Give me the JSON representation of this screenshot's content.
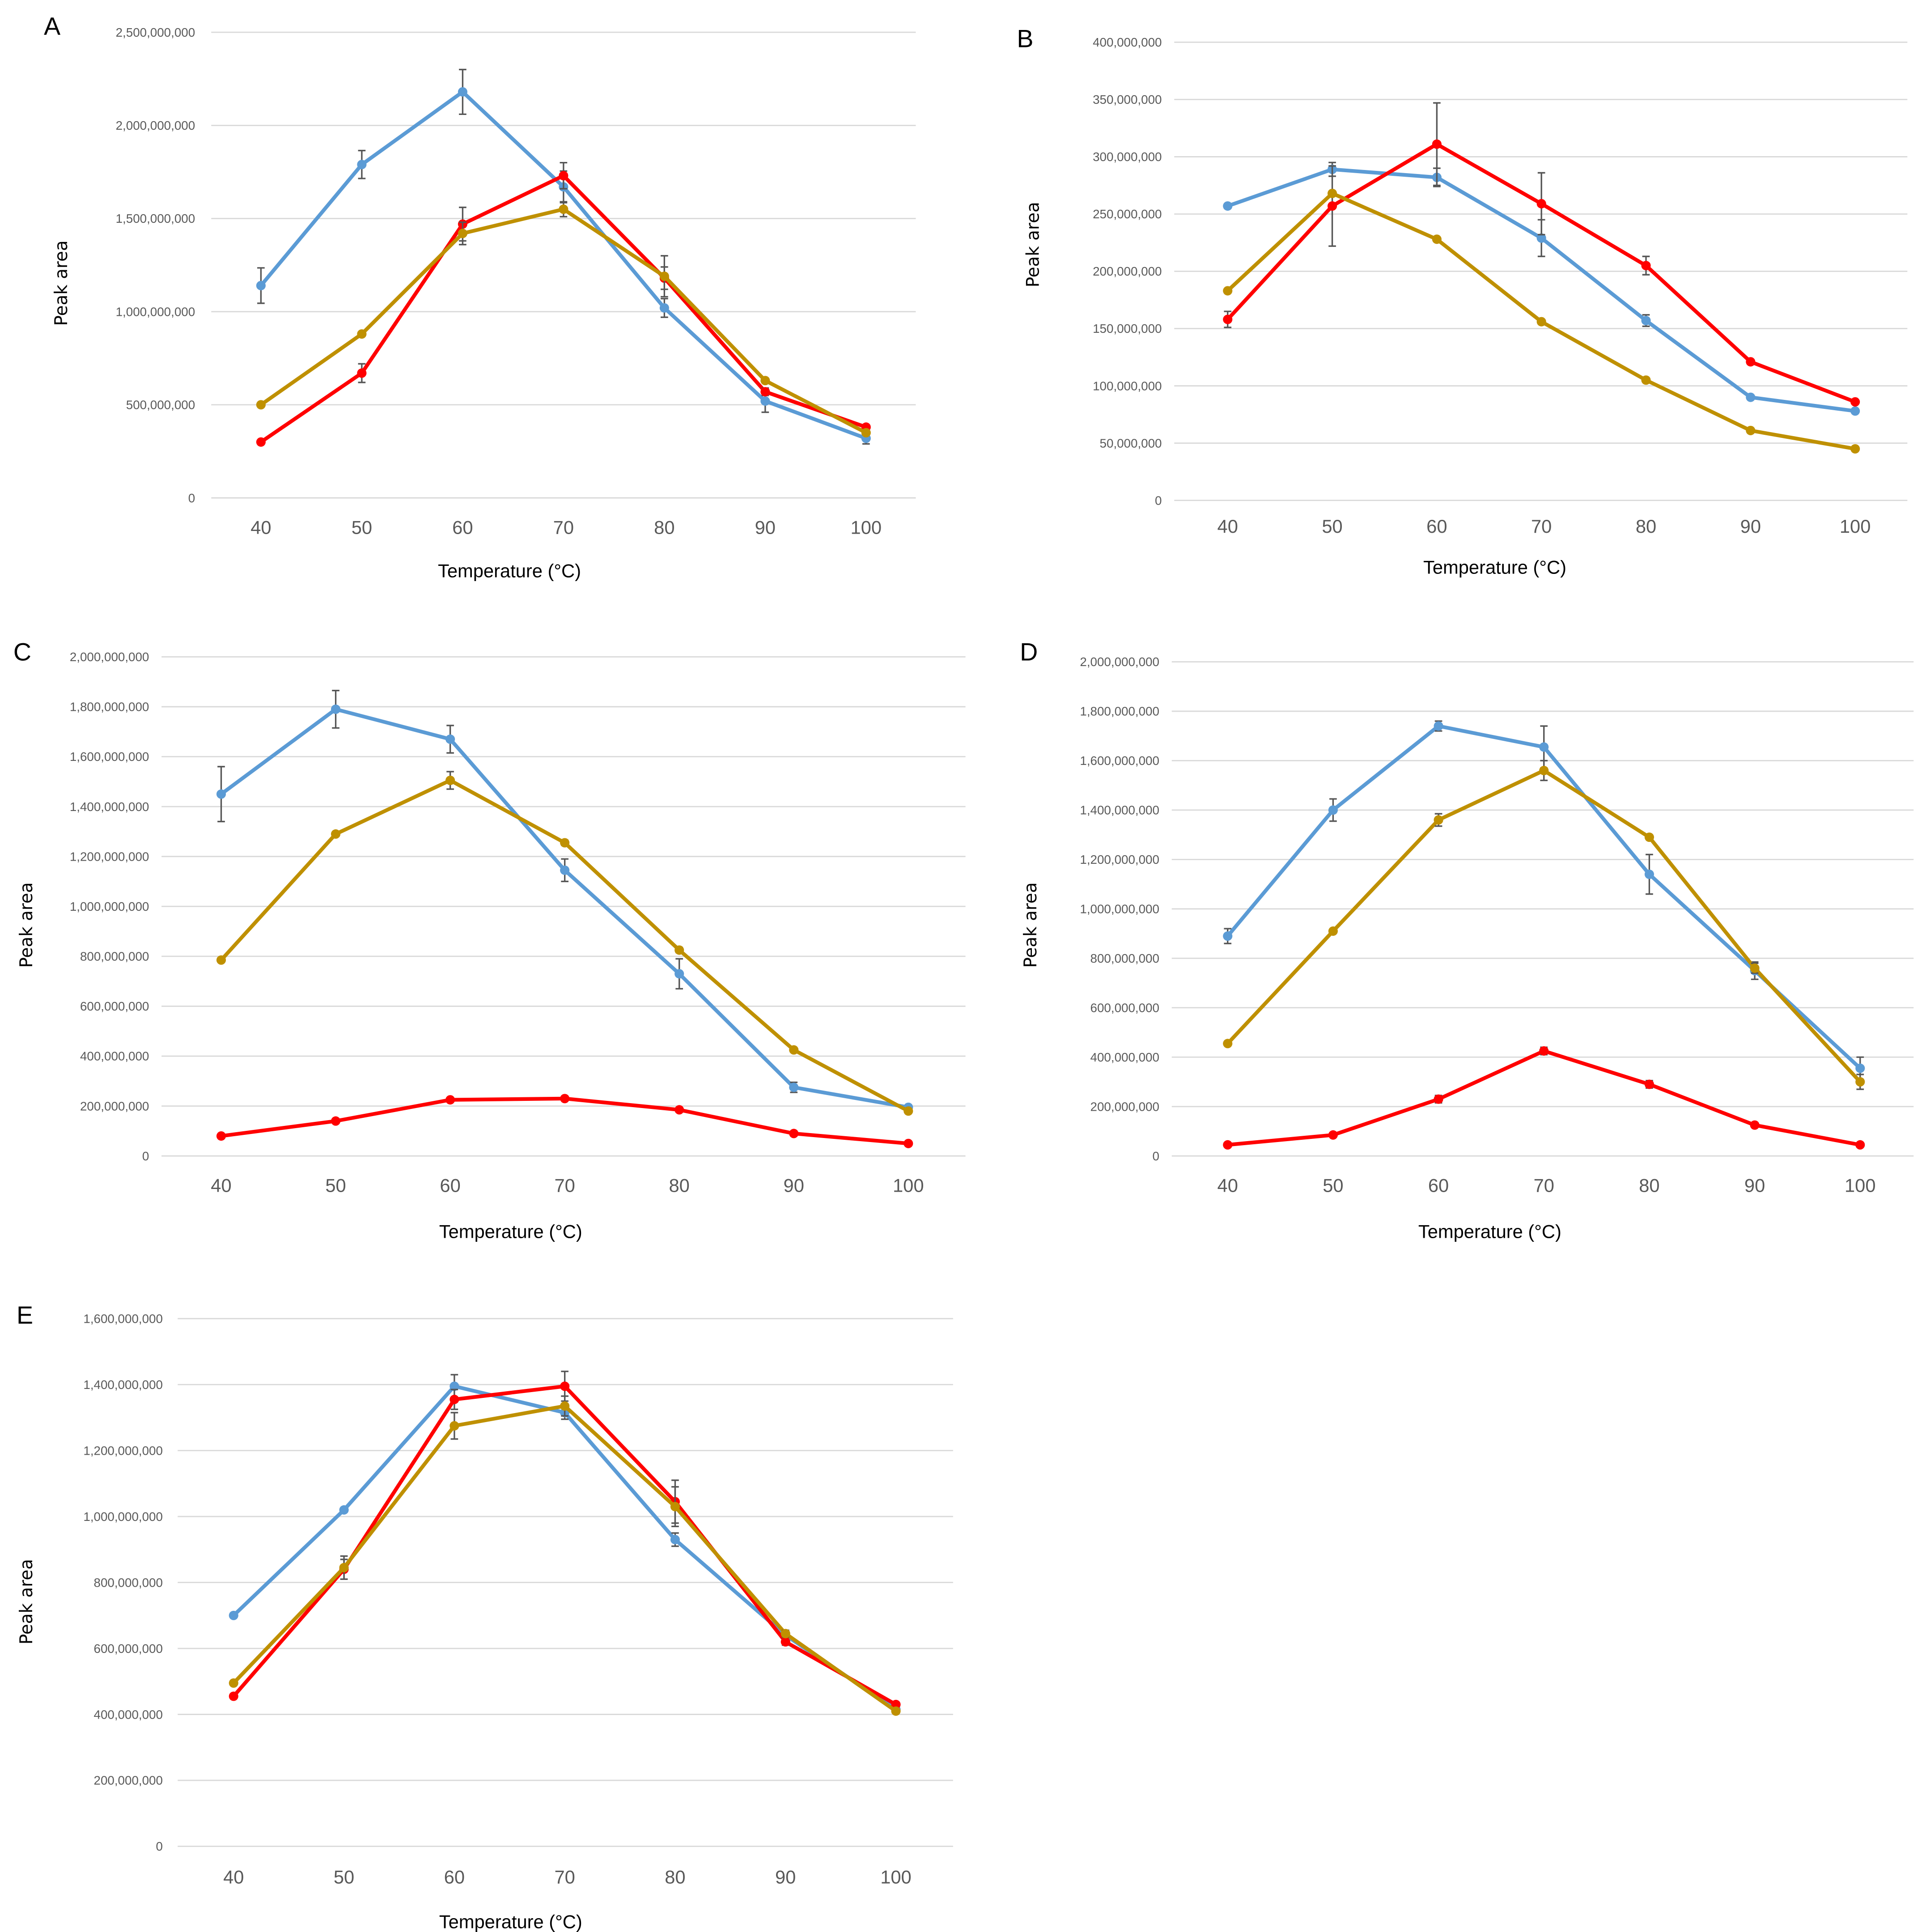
{
  "series_colors": {
    "blue": "#5b9bd5",
    "red": "#ff0000",
    "gold": "#bf9000"
  },
  "chart_data": [
    {
      "type": "line",
      "panel": "A",
      "xlabel": "Temperature (°C)",
      "ylabel": "Peak area",
      "x": [
        40,
        50,
        60,
        70,
        80,
        90,
        100
      ],
      "x_tick_labels": [
        "40",
        "50",
        "60",
        "70",
        "80",
        "90",
        "100"
      ],
      "ylim": [
        0,
        2500000000
      ],
      "y_tick_labels": [
        "0",
        "500,000,000",
        "1,000,000,000",
        "1,500,000,000",
        "2,000,000,000",
        "2,500,000,000"
      ],
      "grid": true,
      "series": [
        {
          "name": "blue",
          "values": [
            1140000000,
            1790000000,
            2180000000,
            1670000000,
            1020000000,
            520000000,
            320000000
          ],
          "errors": [
            95000000,
            75000000,
            120000000,
            85000000,
            50000000,
            60000000,
            30000000
          ]
        },
        {
          "name": "red",
          "values": [
            300000000,
            670000000,
            1470000000,
            1730000000,
            1180000000,
            570000000,
            380000000
          ],
          "errors": [
            10000000,
            50000000,
            90000000,
            70000000,
            60000000,
            20000000,
            10000000
          ]
        },
        {
          "name": "gold",
          "values": [
            500000000,
            880000000,
            1420000000,
            1550000000,
            1190000000,
            630000000,
            350000000
          ],
          "errors": [
            10000000,
            10000000,
            60000000,
            40000000,
            110000000,
            10000000,
            10000000
          ]
        }
      ]
    },
    {
      "type": "line",
      "panel": "B",
      "xlabel": "Temperature (°C)",
      "ylabel": "Peak area",
      "x": [
        40,
        50,
        60,
        70,
        80,
        90,
        100
      ],
      "x_tick_labels": [
        "40",
        "50",
        "60",
        "70",
        "80",
        "90",
        "100"
      ],
      "ylim": [
        0,
        400000000
      ],
      "y_tick_labels": [
        "0",
        "50,000,000",
        "100,000,000",
        "150,000,000",
        "200,000,000",
        "250,000,000",
        "300,000,000",
        "350,000,000",
        "400,000,000"
      ],
      "grid": true,
      "series": [
        {
          "name": "blue",
          "values": [
            257000000,
            289000000,
            282000000,
            229000000,
            157000000,
            90000000,
            78000000
          ],
          "errors": [
            2000000,
            6000000,
            8000000,
            16000000,
            5000000,
            1000000,
            1000000
          ]
        },
        {
          "name": "red",
          "values": [
            158000000,
            257000000,
            311000000,
            259000000,
            205000000,
            121000000,
            86000000
          ],
          "errors": [
            7000000,
            35000000,
            36000000,
            27000000,
            8000000,
            2000000,
            1000000
          ]
        },
        {
          "name": "gold",
          "values": [
            183000000,
            268000000,
            228000000,
            156000000,
            105000000,
            61000000,
            45000000
          ],
          "errors": [
            1000000,
            1000000,
            1000000,
            1000000,
            1000000,
            1000000,
            1000000
          ]
        }
      ]
    },
    {
      "type": "line",
      "panel": "C",
      "xlabel": "Temperature (°C)",
      "ylabel": "Peak area",
      "x": [
        40,
        50,
        60,
        70,
        80,
        90,
        100
      ],
      "x_tick_labels": [
        "40",
        "50",
        "60",
        "70",
        "80",
        "90",
        "100"
      ],
      "ylim": [
        0,
        2000000000
      ],
      "y_tick_labels": [
        "0",
        "200,000,000",
        "400,000,000",
        "600,000,000",
        "800,000,000",
        "1,000,000,000",
        "1,200,000,000",
        "1,400,000,000",
        "1,600,000,000",
        "1,800,000,000",
        "2,000,000,000"
      ],
      "grid": true,
      "series": [
        {
          "name": "blue",
          "values": [
            1450000000,
            1790000000,
            1670000000,
            1145000000,
            730000000,
            275000000,
            195000000
          ],
          "errors": [
            110000000,
            75000000,
            55000000,
            45000000,
            60000000,
            20000000,
            8000000
          ]
        },
        {
          "name": "gold",
          "values": [
            785000000,
            1290000000,
            1505000000,
            1255000000,
            825000000,
            425000000,
            180000000
          ],
          "errors": [
            5000000,
            5000000,
            35000000,
            10000000,
            10000000,
            5000000,
            5000000
          ]
        },
        {
          "name": "red",
          "values": [
            80000000,
            140000000,
            225000000,
            230000000,
            185000000,
            90000000,
            50000000
          ],
          "errors": [
            2000000,
            2000000,
            3000000,
            3000000,
            3000000,
            2000000,
            2000000
          ]
        }
      ]
    },
    {
      "type": "line",
      "panel": "D",
      "xlabel": "Temperature (°C)",
      "ylabel": "Peak area",
      "x": [
        40,
        50,
        60,
        70,
        80,
        90,
        100
      ],
      "x_tick_labels": [
        "40",
        "50",
        "60",
        "70",
        "80",
        "90",
        "100"
      ],
      "ylim": [
        0,
        2000000000
      ],
      "y_tick_labels": [
        "0",
        "200,000,000",
        "400,000,000",
        "600,000,000",
        "800,000,000",
        "1,000,000,000",
        "1,200,000,000",
        "1,400,000,000",
        "1,600,000,000",
        "1,800,000,000",
        "2,000,000,000"
      ],
      "grid": true,
      "series": [
        {
          "name": "blue",
          "values": [
            890000000,
            1400000000,
            1740000000,
            1655000000,
            1140000000,
            750000000,
            355000000
          ],
          "errors": [
            30000000,
            45000000,
            20000000,
            85000000,
            80000000,
            35000000,
            45000000
          ]
        },
        {
          "name": "gold",
          "values": [
            455000000,
            910000000,
            1360000000,
            1560000000,
            1290000000,
            760000000,
            300000000
          ],
          "errors": [
            5000000,
            5000000,
            25000000,
            40000000,
            5000000,
            20000000,
            30000000
          ]
        },
        {
          "name": "red",
          "values": [
            45000000,
            85000000,
            230000000,
            425000000,
            290000000,
            125000000,
            45000000
          ],
          "errors": [
            3000000,
            5000000,
            15000000,
            15000000,
            15000000,
            5000000,
            5000000
          ]
        }
      ]
    },
    {
      "type": "line",
      "panel": "E",
      "xlabel": "Temperature (°C)",
      "ylabel": "Peak area",
      "x": [
        40,
        50,
        60,
        70,
        80,
        90,
        100
      ],
      "x_tick_labels": [
        "40",
        "50",
        "60",
        "70",
        "80",
        "90",
        "100"
      ],
      "ylim": [
        0,
        1600000000
      ],
      "y_tick_labels": [
        "0",
        "200,000,000",
        "400,000,000",
        "600,000,000",
        "800,000,000",
        "1,000,000,000",
        "1,200,000,000",
        "1,400,000,000",
        "1,600,000,000"
      ],
      "grid": true,
      "series": [
        {
          "name": "blue",
          "values": [
            700000000,
            1020000000,
            1395000000,
            1315000000,
            930000000,
            640000000,
            415000000
          ],
          "errors": [
            5000000,
            5000000,
            35000000,
            20000000,
            20000000,
            15000000,
            5000000
          ]
        },
        {
          "name": "red",
          "values": [
            455000000,
            840000000,
            1355000000,
            1395000000,
            1045000000,
            620000000,
            430000000
          ],
          "errors": [
            5000000,
            30000000,
            30000000,
            45000000,
            65000000,
            10000000,
            5000000
          ]
        },
        {
          "name": "gold",
          "values": [
            495000000,
            845000000,
            1275000000,
            1335000000,
            1030000000,
            645000000,
            410000000
          ],
          "errors": [
            5000000,
            35000000,
            40000000,
            30000000,
            60000000,
            10000000,
            5000000
          ]
        }
      ]
    }
  ]
}
